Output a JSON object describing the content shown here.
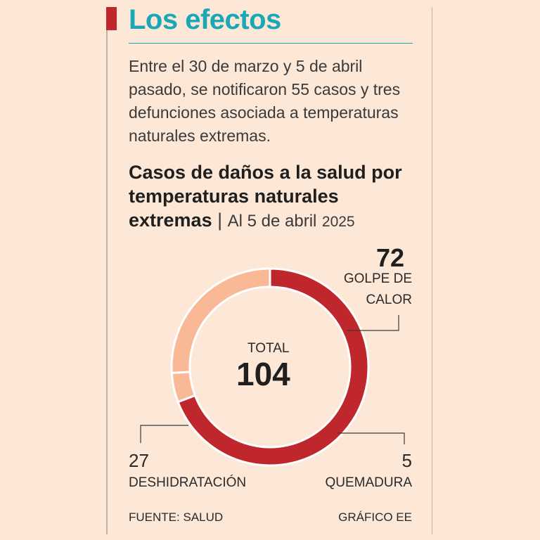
{
  "header": {
    "title": "Los efectos",
    "intro": "Entre el 30 de marzo y 5 de abril pasado, se notificaron 55 casos y tres defunciones asociada a temperaturas naturales extremas.",
    "accent_color": "#c0272d",
    "title_color": "#1aa7b6"
  },
  "chart_data": {
    "type": "pie",
    "title_bold": "Casos de daños a la salud por temperaturas naturales extremas",
    "title_sep": " | ",
    "title_date": "Al 5 de abril",
    "title_year": "2025",
    "total_label": "TOTAL",
    "total_value": "104",
    "slices": [
      {
        "name": "GOLPE DE CALOR",
        "line1": "GOLPE DE",
        "line2": "CALOR",
        "value": 72,
        "color": "#c0272d"
      },
      {
        "name": "QUEMADURA",
        "value": 5,
        "color": "#f9b996"
      },
      {
        "name": "DESHIDRATACIÓN",
        "value": 27,
        "color": "#f9b996"
      }
    ]
  },
  "footer": {
    "source": "FUENTE: SALUD",
    "credit": "GRÁFICO EE"
  }
}
